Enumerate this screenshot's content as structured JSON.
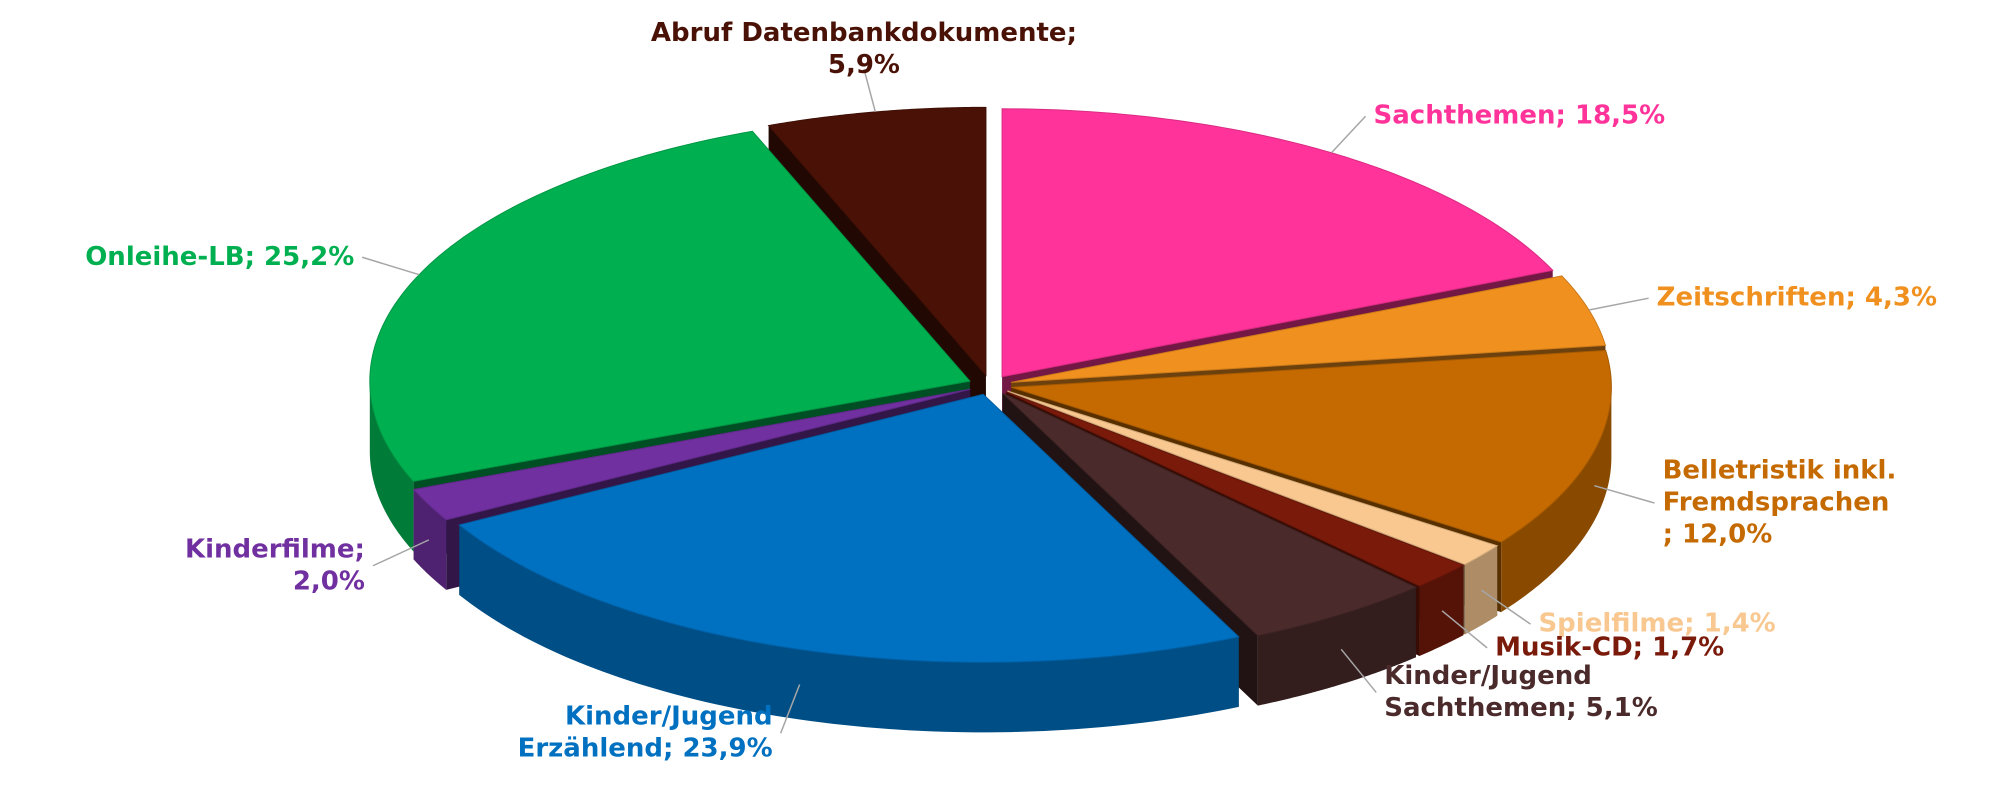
{
  "chart_data": {
    "type": "pie",
    "categories": [
      "Sachthemen",
      "Zeitschriften",
      "Belletristik inkl. Fremdsprachen",
      "Spielfilme",
      "Musik-CD",
      "Kinder/Jugend Sachthemen",
      "Kinder/Jugend Erzählend",
      "Kinderfilme",
      "Onleihe-LB",
      "Abruf Datenbankdokumente"
    ],
    "values": [
      18.5,
      4.3,
      12.0,
      1.4,
      1.7,
      5.1,
      23.9,
      2.0,
      25.2,
      5.9
    ],
    "value_labels": [
      [
        "Sachthemen; 18,5%"
      ],
      [
        "Zeitschriften; 4,3%"
      ],
      [
        "Belletristik inkl.",
        "Fremdsprachen",
        "; 12,0%"
      ],
      [
        "Spielfilme; 1,4%"
      ],
      [
        "Musik-CD; 1,7%"
      ],
      [
        "Kinder/Jugend",
        "Sachthemen; 5,1%"
      ],
      [
        "Kinder/Jugend",
        "Erzählend; 23,9%"
      ],
      [
        "Kinderfilme;",
        "2,0%"
      ],
      [
        "Onleihe-LB; 25,2%"
      ],
      [
        "Abruf Datenbankdokumente;",
        "5,9%"
      ]
    ],
    "colors": [
      "#ff3399",
      "#f0901e",
      "#c46a00",
      "#f8c890",
      "#7a1a0a",
      "#4a2a2a",
      "#0070c0",
      "#7030a0",
      "#00b050",
      "#4a1206"
    ],
    "label_colors": [
      "#ff3399",
      "#f0901e",
      "#c46a00",
      "#f8c890",
      "#7a1a0a",
      "#4a2a2a",
      "#0070c0",
      "#7030a0",
      "#00b050",
      "#4a1206"
    ]
  }
}
